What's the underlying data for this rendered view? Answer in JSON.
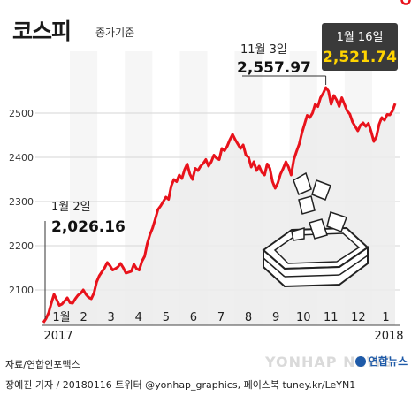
{
  "title": "코스피",
  "subtitle": "종가기준",
  "source": "자료/연합인포맥스",
  "credit": "장예진 기자 / 20180116 트위터 @yonhap_graphics, 페이스북 tuney.kr/LeYN1",
  "logo_text": "연합뉴스",
  "watermark": "YONHAP NEWS",
  "colors": {
    "line": "#e8121b",
    "area": "#ececec",
    "grid": "#d6d6d6",
    "callout_bg": "#3a3a3a",
    "callout_value": "#ffd400"
  },
  "chart_data": {
    "type": "area",
    "title": "코스피",
    "subtitle": "종가기준",
    "yticks": [
      2100,
      2200,
      2300,
      2400,
      2500
    ],
    "ylim": [
      2020,
      2600
    ],
    "grid": true,
    "month_labels": [
      "1월",
      "2",
      "3",
      "4",
      "5",
      "6",
      "7",
      "8",
      "9",
      "10",
      "11",
      "12",
      "1"
    ],
    "year_labels": [
      "2017",
      "2018"
    ],
    "series": [
      {
        "values": [
          2026.16,
          2035,
          2048,
          2070,
          2090,
          2078,
          2065,
          2068,
          2075,
          2082,
          2071,
          2070,
          2080,
          2088,
          2092,
          2100,
          2090,
          2083,
          2080,
          2093,
          2118,
          2132,
          2141,
          2150,
          2162,
          2155,
          2145,
          2148,
          2152,
          2160,
          2150,
          2138,
          2140,
          2142,
          2158,
          2148,
          2145,
          2165,
          2176,
          2205,
          2225,
          2240,
          2260,
          2282,
          2290,
          2300,
          2310,
          2305,
          2335,
          2350,
          2345,
          2360,
          2352,
          2372,
          2385,
          2362,
          2350,
          2375,
          2370,
          2380,
          2386,
          2395,
          2380,
          2390,
          2405,
          2398,
          2395,
          2420,
          2415,
          2425,
          2440,
          2452,
          2440,
          2430,
          2420,
          2428,
          2405,
          2400,
          2378,
          2390,
          2370,
          2380,
          2366,
          2360,
          2385,
          2375,
          2345,
          2330,
          2342,
          2362,
          2375,
          2390,
          2378,
          2360,
          2395,
          2413,
          2430,
          2455,
          2475,
          2495,
          2490,
          2500,
          2520,
          2515,
          2535,
          2545,
          2557.97,
          2550,
          2520,
          2540,
          2530,
          2515,
          2535,
          2520,
          2505,
          2498,
          2480,
          2470,
          2460,
          2473,
          2478,
          2470,
          2477,
          2458,
          2436,
          2447,
          2475,
          2490,
          2484,
          2497,
          2496,
          2505,
          2521.74
        ]
      }
    ],
    "annotations": [
      {
        "label": "1월 2일",
        "value": "2,026.16",
        "index": 0
      },
      {
        "label": "11월 3일",
        "value": "2,557.97",
        "index": 106
      },
      {
        "label": "1월 16일",
        "value": "2,521.74",
        "index": 136
      }
    ]
  }
}
